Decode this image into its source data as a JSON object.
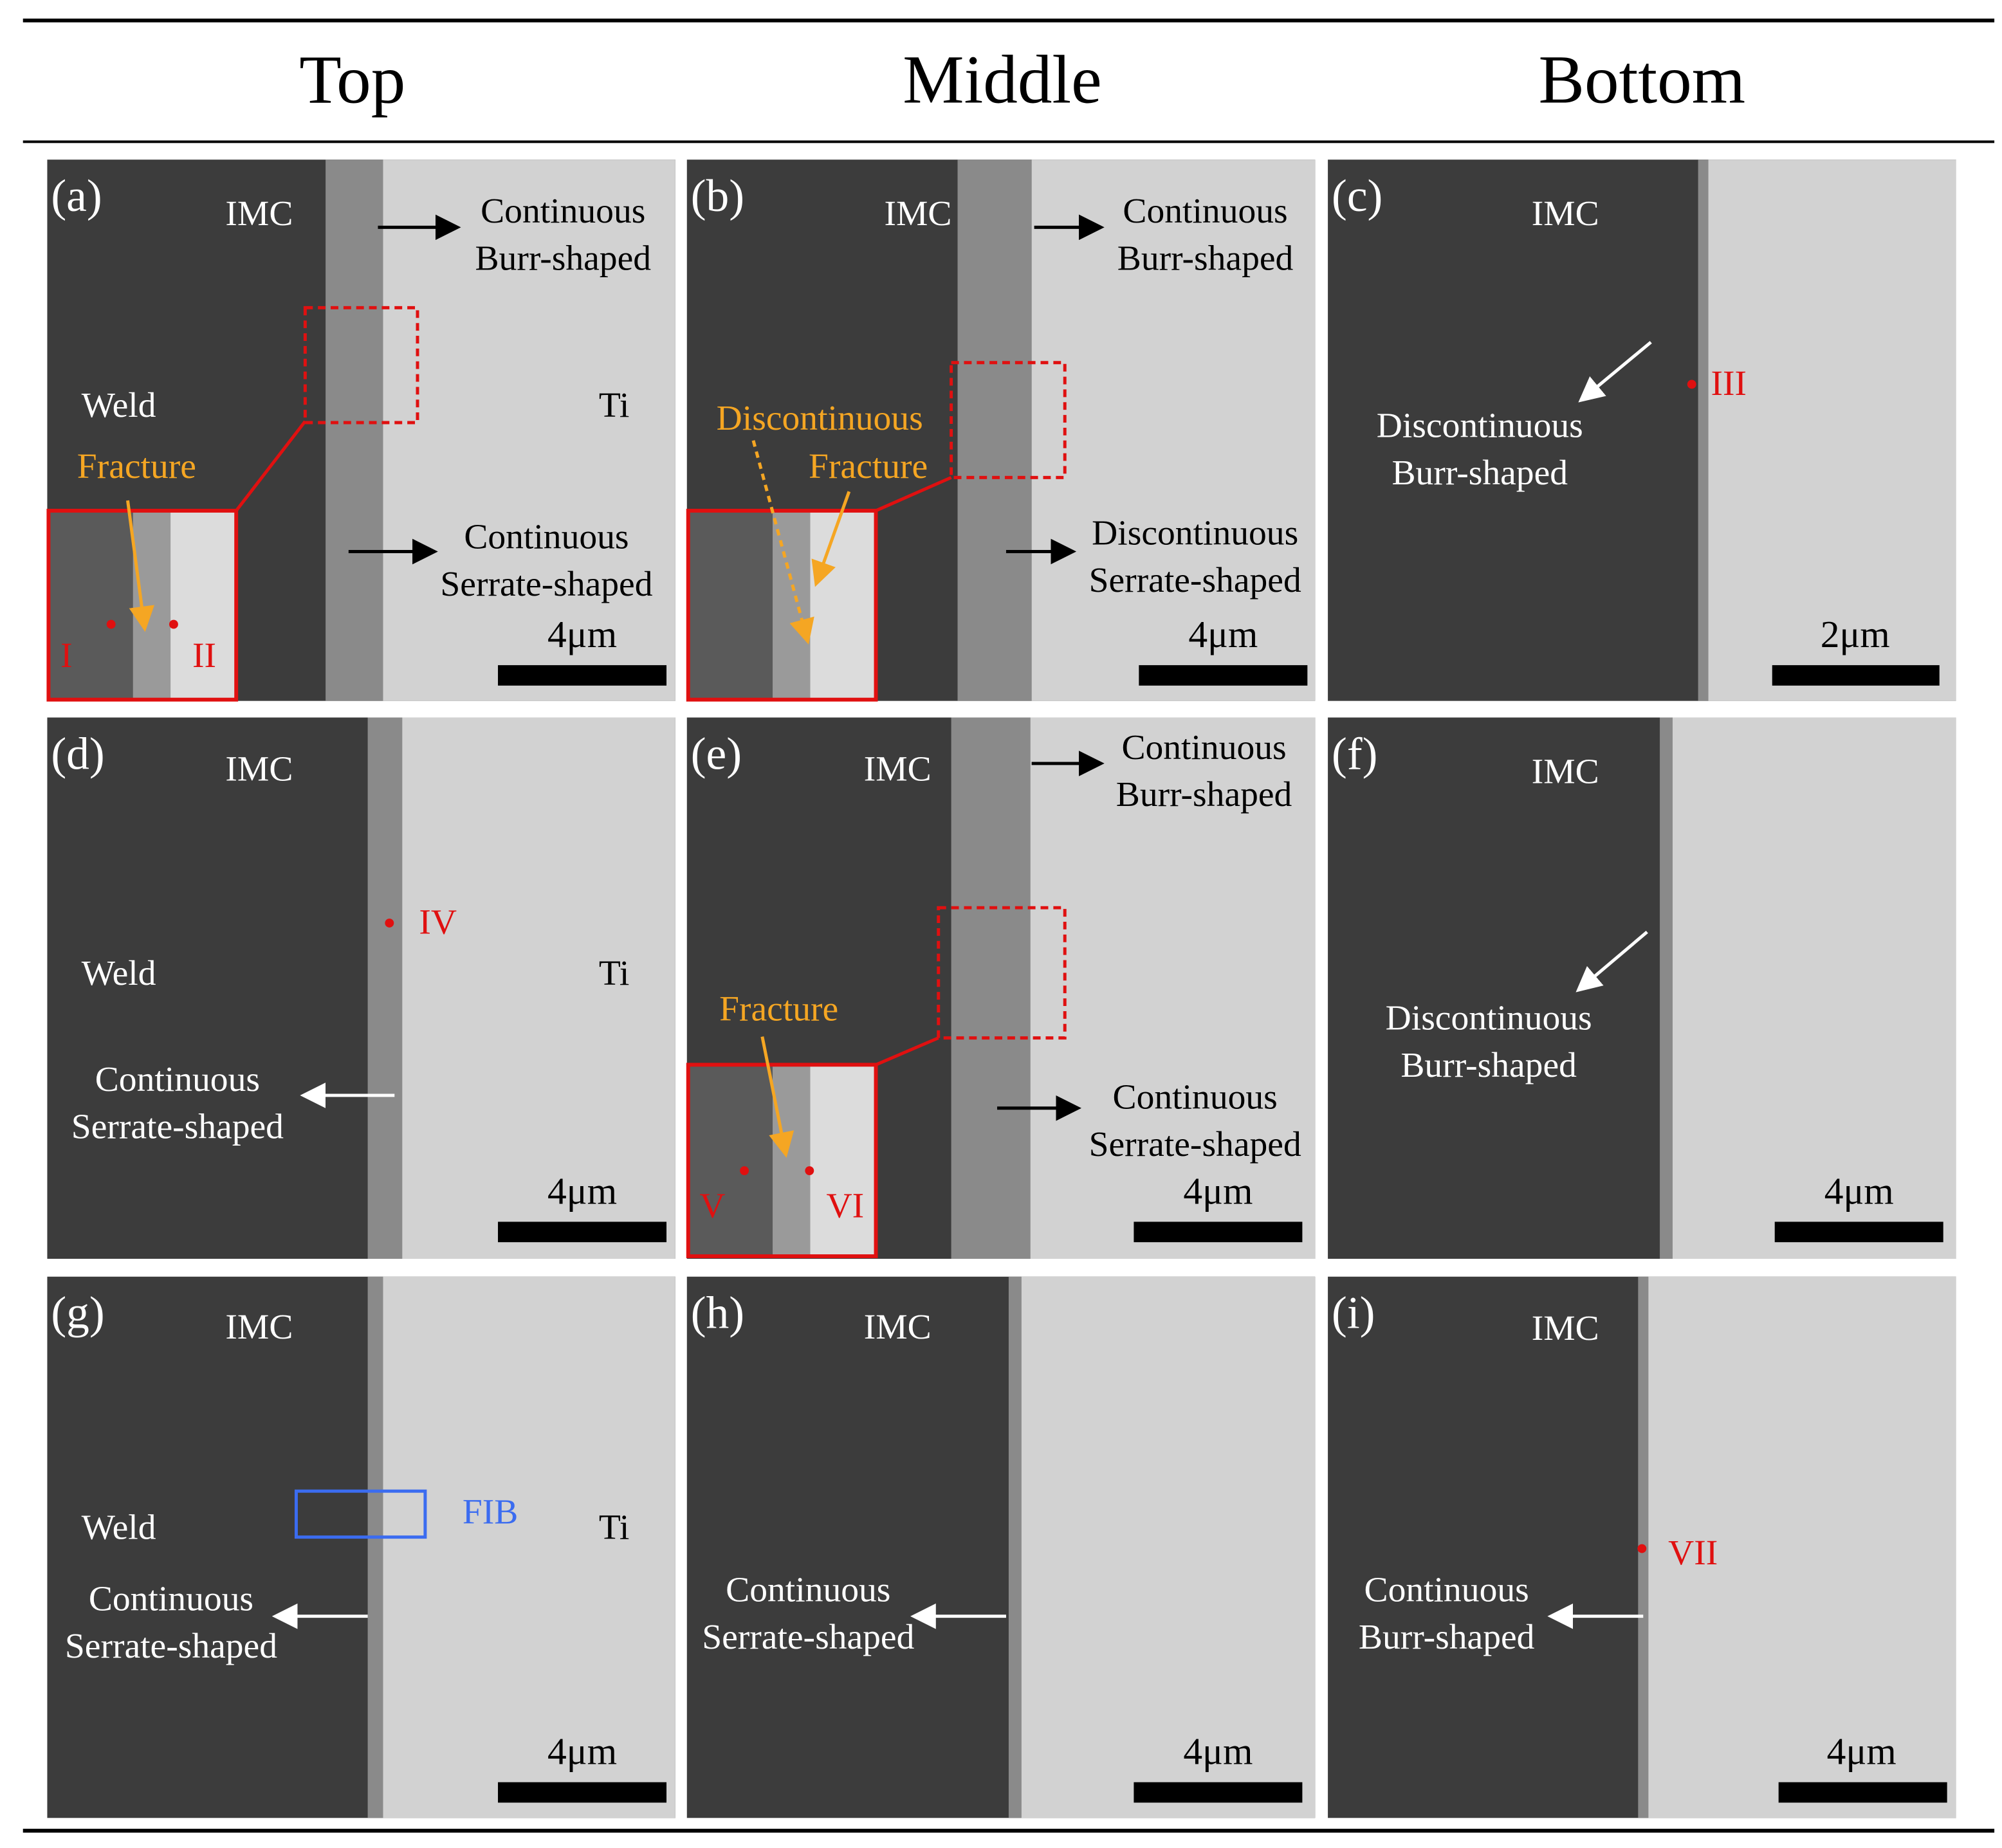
{
  "header": {
    "columns": [
      "Top",
      "Middle",
      "Bottom"
    ]
  },
  "panels": [
    {
      "label": "(a)",
      "annotations": [
        "IMC",
        "Continuous",
        "Burr-shaped",
        "Weld",
        "Ti",
        "Fracture",
        "Continuous",
        "Serrate-shaped",
        "I",
        "II"
      ],
      "scale_bar": "4μm"
    },
    {
      "label": "(b)",
      "annotations": [
        "IMC",
        "Continuous",
        "Burr-shaped",
        "Discontinuous",
        "Fracture",
        "Discontinuous",
        "Serrate-shaped"
      ],
      "scale_bar": "4μm"
    },
    {
      "label": "(c)",
      "annotations": [
        "IMC",
        "III",
        "Discontinuous",
        "Burr-shaped"
      ],
      "scale_bar": "2μm"
    },
    {
      "label": "(d)",
      "annotations": [
        "IMC",
        "IV",
        "Weld",
        "Ti",
        "Continuous",
        "Serrate-shaped"
      ],
      "scale_bar": "4μm"
    },
    {
      "label": "(e)",
      "annotations": [
        "IMC",
        "Continuous",
        "Burr-shaped",
        "Fracture",
        "V",
        "VI",
        "Continuous",
        "Serrate-shaped"
      ],
      "scale_bar": "4μm"
    },
    {
      "label": "(f)",
      "annotations": [
        "IMC",
        "Discontinuous",
        "Burr-shaped"
      ],
      "scale_bar": "4μm"
    },
    {
      "label": "(g)",
      "annotations": [
        "IMC",
        "FIB",
        "Weld",
        "Ti",
        "Continuous",
        "Serrate-shaped"
      ],
      "scale_bar": "4μm"
    },
    {
      "label": "(h)",
      "annotations": [
        "IMC",
        "Continuous",
        "Serrate-shaped"
      ],
      "scale_bar": "4μm"
    },
    {
      "label": "(i)",
      "annotations": [
        "IMC",
        "VII",
        "Continuous",
        "Burr-shaped"
      ],
      "scale_bar": "4μm"
    }
  ]
}
